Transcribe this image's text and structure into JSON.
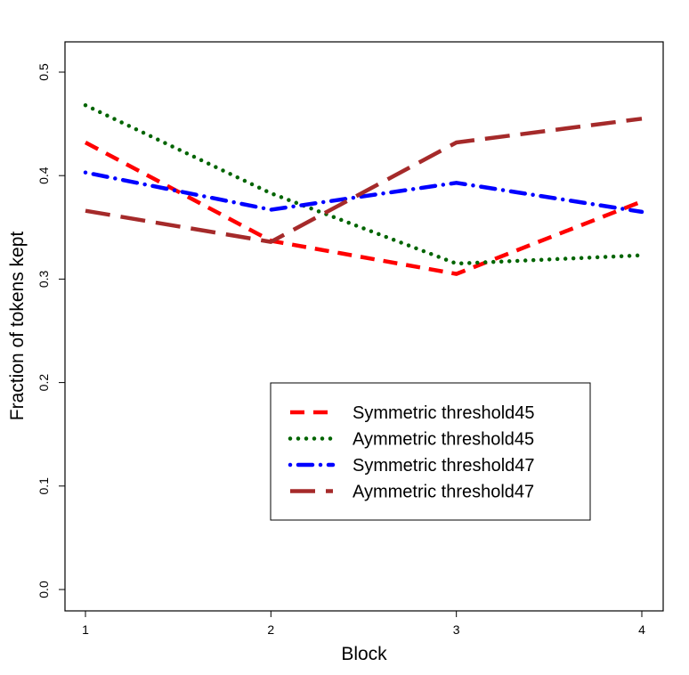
{
  "chart_data": {
    "type": "line",
    "title": "",
    "xlabel": "Block",
    "ylabel": "Fraction of tokens kept",
    "x": [
      1,
      2,
      3,
      4
    ],
    "x_ticks": [
      "1",
      "2",
      "3",
      "4"
    ],
    "xlim": [
      1,
      4
    ],
    "ylim": [
      0,
      0.5
    ],
    "y_ticks": [
      "0.0",
      "0.1",
      "0.2",
      "0.3",
      "0.4",
      "0.5"
    ],
    "grid": false,
    "legend_position": "bottom-right",
    "series": [
      {
        "name": "Symmetric threshold45",
        "values": [
          0.432,
          0.337,
          0.305,
          0.375
        ],
        "color": "#ff0000",
        "dash": "dashed"
      },
      {
        "name": "Aymmetric threshold45",
        "values": [
          0.468,
          0.383,
          0.315,
          0.323
        ],
        "color": "#006400",
        "dash": "dotted"
      },
      {
        "name": "Symmetric threshold47",
        "values": [
          0.403,
          0.367,
          0.393,
          0.365
        ],
        "color": "#0000ff",
        "dash": "dotdash"
      },
      {
        "name": "Aymmetric threshold47",
        "values": [
          0.366,
          0.336,
          0.432,
          0.455
        ],
        "color": "#a52a2a",
        "dash": "longdash"
      }
    ]
  }
}
